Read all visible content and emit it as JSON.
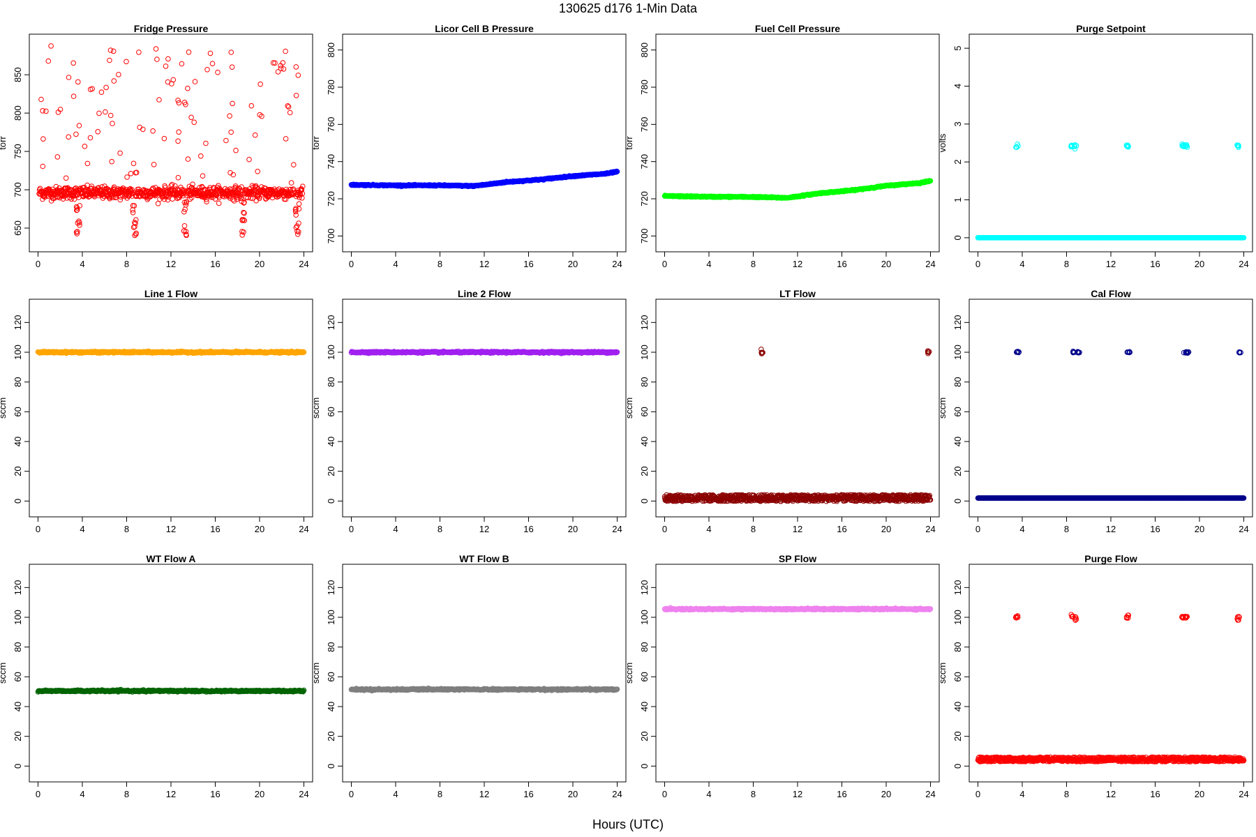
{
  "figure": {
    "title": "130625    d176    1-Min Data",
    "xlabel": "Hours (UTC)"
  },
  "chart_data": [
    {
      "type": "scatter",
      "title": "Fridge Pressure",
      "ylabel": "torr",
      "color": "#ff0000",
      "xlim": [
        0,
        24
      ],
      "ylim": [
        630,
        892
      ],
      "xticks": [
        0,
        4,
        8,
        12,
        16,
        20,
        24
      ],
      "yticks": [
        650,
        700,
        750,
        800,
        850
      ],
      "pattern": "fridge",
      "baseline": 696
    },
    {
      "type": "scatter",
      "title": "Licor Cell B Pressure",
      "ylabel": "torr",
      "color": "#0000ff",
      "xlim": [
        0,
        24
      ],
      "ylim": [
        696,
        804
      ],
      "xticks": [
        0,
        4,
        8,
        12,
        16,
        20,
        24
      ],
      "yticks": [
        700,
        720,
        740,
        760,
        780,
        800
      ],
      "pattern": "curve",
      "points": [
        [
          0,
          727.5
        ],
        [
          4,
          727.2
        ],
        [
          8,
          727.2
        ],
        [
          11,
          726.9
        ],
        [
          12,
          727.5
        ],
        [
          14,
          729
        ],
        [
          17,
          730.3
        ],
        [
          20,
          732.2
        ],
        [
          23,
          733.5
        ],
        [
          24,
          734.6
        ]
      ]
    },
    {
      "type": "scatter",
      "title": "Fuel Cell Pressure",
      "ylabel": "torr",
      "color": "#00ff00",
      "xlim": [
        0,
        24
      ],
      "ylim": [
        696,
        804
      ],
      "xticks": [
        0,
        4,
        8,
        12,
        16,
        20,
        24
      ],
      "yticks": [
        700,
        720,
        740,
        760,
        780,
        800
      ],
      "pattern": "curve",
      "points": [
        [
          0,
          721.5
        ],
        [
          4,
          721.1
        ],
        [
          8,
          721
        ],
        [
          11,
          720.5
        ],
        [
          12,
          721.3
        ],
        [
          14,
          723
        ],
        [
          17,
          724.6
        ],
        [
          20,
          727
        ],
        [
          23,
          728.5
        ],
        [
          24,
          729.6
        ]
      ]
    },
    {
      "type": "scatter",
      "title": "Purge Setpoint",
      "ylabel": "volts",
      "color": "#00ffff",
      "xlim": [
        0,
        24
      ],
      "ylim": [
        -0.15,
        5.15
      ],
      "xticks": [
        0,
        4,
        8,
        12,
        16,
        20,
        24
      ],
      "yticks": [
        0,
        1,
        2,
        3,
        4,
        5
      ],
      "pattern": "spikes",
      "baseline": 0,
      "spike_value": 2.42,
      "spike_times": [
        3.5,
        8.5,
        8.8,
        13.5,
        18.5,
        18.8,
        23.5
      ]
    },
    {
      "type": "scatter",
      "title": "Line 1 Flow",
      "ylabel": "sccm",
      "color": "#ffa500",
      "xlim": [
        0,
        24
      ],
      "ylim": [
        -5,
        130
      ],
      "xticks": [
        0,
        4,
        8,
        12,
        16,
        20,
        24
      ],
      "yticks": [
        0,
        20,
        40,
        60,
        80,
        100,
        120
      ],
      "pattern": "flat",
      "baseline": 100
    },
    {
      "type": "scatter",
      "title": "Line 2 Flow",
      "ylabel": "sccm",
      "color": "#a020f0",
      "xlim": [
        0,
        24
      ],
      "ylim": [
        -5,
        130
      ],
      "xticks": [
        0,
        4,
        8,
        12,
        16,
        20,
        24
      ],
      "yticks": [
        0,
        20,
        40,
        60,
        80,
        100,
        120
      ],
      "pattern": "flat",
      "baseline": 100
    },
    {
      "type": "scatter",
      "title": "LT Flow",
      "ylabel": "sccm",
      "color": "#8b0000",
      "xlim": [
        0,
        24
      ],
      "ylim": [
        -5,
        130
      ],
      "xticks": [
        0,
        4,
        8,
        12,
        16,
        20,
        24
      ],
      "yticks": [
        0,
        20,
        40,
        60,
        80,
        100,
        120
      ],
      "pattern": "noisy_spikes",
      "baseline": 2,
      "noise": 2.2,
      "spike_value": 100,
      "spike_times": [
        8.8,
        23.8
      ]
    },
    {
      "type": "scatter",
      "title": "Cal Flow",
      "ylabel": "sccm",
      "color": "#00008b",
      "xlim": [
        0,
        24
      ],
      "ylim": [
        -5,
        130
      ],
      "xticks": [
        0,
        4,
        8,
        12,
        16,
        20,
        24
      ],
      "yticks": [
        0,
        20,
        40,
        60,
        80,
        100,
        120
      ],
      "pattern": "spikes",
      "baseline": 2,
      "spike_value": 100,
      "spike_times": [
        3.6,
        8.7,
        9.1,
        13.6,
        18.7,
        18.9,
        23.7
      ]
    },
    {
      "type": "scatter",
      "title": "WT Flow A",
      "ylabel": "sccm",
      "color": "#006400",
      "xlim": [
        0,
        24
      ],
      "ylim": [
        -5,
        130
      ],
      "xticks": [
        0,
        4,
        8,
        12,
        16,
        20,
        24
      ],
      "yticks": [
        0,
        20,
        40,
        60,
        80,
        100,
        120
      ],
      "pattern": "flat",
      "baseline": 50.5
    },
    {
      "type": "scatter",
      "title": "WT Flow B",
      "ylabel": "sccm",
      "color": "#7f7f7f",
      "xlim": [
        0,
        24
      ],
      "ylim": [
        -5,
        130
      ],
      "xticks": [
        0,
        4,
        8,
        12,
        16,
        20,
        24
      ],
      "yticks": [
        0,
        20,
        40,
        60,
        80,
        100,
        120
      ],
      "pattern": "flat",
      "baseline": 51.5
    },
    {
      "type": "scatter",
      "title": "SP Flow",
      "ylabel": "sccm",
      "color": "#ee82ee",
      "xlim": [
        0,
        24
      ],
      "ylim": [
        -5,
        130
      ],
      "xticks": [
        0,
        4,
        8,
        12,
        16,
        20,
        24
      ],
      "yticks": [
        0,
        20,
        40,
        60,
        80,
        100,
        120
      ],
      "pattern": "flat",
      "baseline": 105.5
    },
    {
      "type": "scatter",
      "title": "Purge Flow",
      "ylabel": "sccm",
      "color": "#ff0000",
      "xlim": [
        0,
        24
      ],
      "ylim": [
        -5,
        130
      ],
      "xticks": [
        0,
        4,
        8,
        12,
        16,
        20,
        24
      ],
      "yticks": [
        0,
        20,
        40,
        60,
        80,
        100,
        120
      ],
      "pattern": "noisy_spikes",
      "baseline": 4.5,
      "noise": 1.5,
      "spike_value": 100,
      "spike_times": [
        3.5,
        8.5,
        8.8,
        13.5,
        18.5,
        18.8,
        23.5
      ]
    }
  ]
}
